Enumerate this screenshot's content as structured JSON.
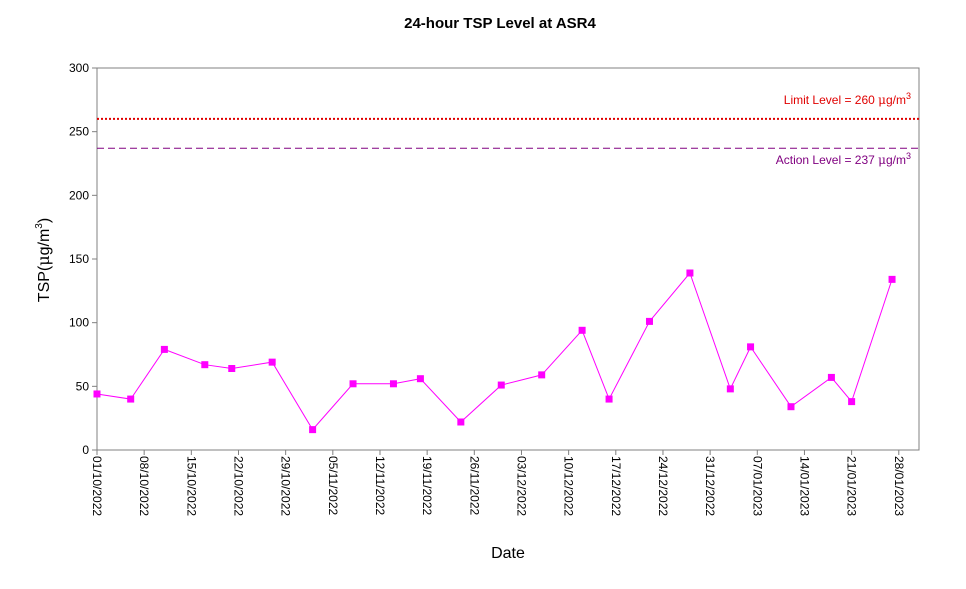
{
  "chart_data": {
    "type": "line",
    "title": "24-hour TSP Level at ASR4",
    "xlabel": "Date",
    "ylabel_main": "TSP(",
    "ylabel_unit_mu": "μ",
    "ylabel_unit_g": "g/m",
    "ylabel_unit_exp": "3",
    "ylabel_close": ")",
    "ylim": [
      0,
      300
    ],
    "yticks": [
      "0",
      "50",
      "100",
      "150",
      "200",
      "250",
      "300"
    ],
    "xlim": [
      "2022-10-01",
      "2023-01-31"
    ],
    "xticks": [
      "01/10/2022",
      "08/10/2022",
      "15/10/2022",
      "22/10/2022",
      "29/10/2022",
      "05/11/2022",
      "12/11/2022",
      "19/11/2022",
      "26/11/2022",
      "03/12/2022",
      "10/12/2022",
      "17/12/2022",
      "24/12/2022",
      "31/12/2022",
      "07/01/2023",
      "14/01/2023",
      "21/01/2023",
      "28/01/2023"
    ],
    "series": [
      {
        "color": "#ff00ff",
        "points": [
          {
            "x": "2022-10-01",
            "y": 44
          },
          {
            "x": "2022-10-06",
            "y": 40
          },
          {
            "x": "2022-10-11",
            "y": 79
          },
          {
            "x": "2022-10-17",
            "y": 67
          },
          {
            "x": "2022-10-21",
            "y": 64
          },
          {
            "x": "2022-10-27",
            "y": 69
          },
          {
            "x": "2022-11-02",
            "y": 16
          },
          {
            "x": "2022-11-08",
            "y": 52
          },
          {
            "x": "2022-11-14",
            "y": 52
          },
          {
            "x": "2022-11-18",
            "y": 56
          },
          {
            "x": "2022-11-24",
            "y": 22
          },
          {
            "x": "2022-11-30",
            "y": 51
          },
          {
            "x": "2022-12-06",
            "y": 59
          },
          {
            "x": "2022-12-12",
            "y": 94
          },
          {
            "x": "2022-12-16",
            "y": 40
          },
          {
            "x": "2022-12-22",
            "y": 101
          },
          {
            "x": "2022-12-28",
            "y": 139
          },
          {
            "x": "2023-01-03",
            "y": 48
          },
          {
            "x": "2023-01-06",
            "y": 81
          },
          {
            "x": "2023-01-12",
            "y": 34
          },
          {
            "x": "2023-01-18",
            "y": 57
          },
          {
            "x": "2023-01-21",
            "y": 38
          },
          {
            "x": "2023-01-27",
            "y": 134
          }
        ]
      }
    ],
    "reference_lines": [
      {
        "value": 260,
        "color": "#e00000",
        "style": "dotted",
        "label_text": "Limit Level  = 260 ",
        "label_mu": "μ",
        "label_unit": "g/m",
        "label_exp": "3"
      },
      {
        "value": 237,
        "color": "#800080",
        "style": "dashed",
        "label_text": "Action Level  = 237 ",
        "label_mu": "μ",
        "label_unit": "g/m",
        "label_exp": "3"
      }
    ]
  }
}
